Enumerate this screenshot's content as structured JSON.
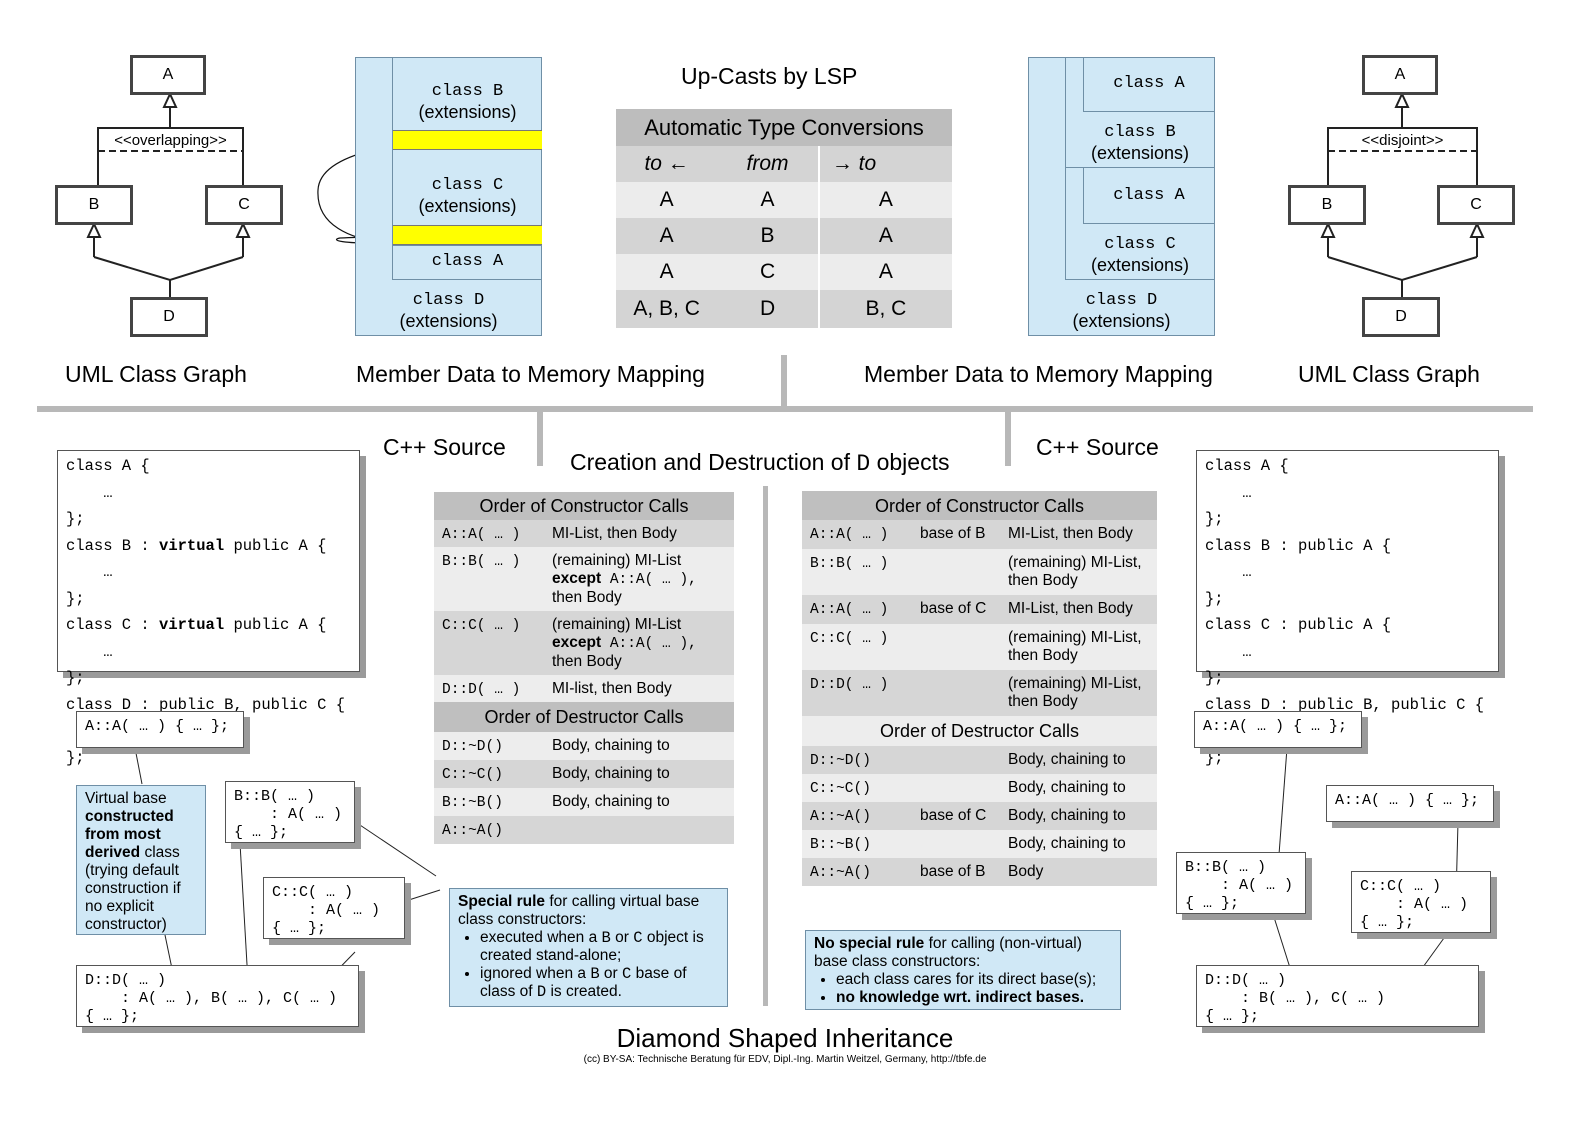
{
  "uml_left": {
    "a": "A",
    "b": "B",
    "c": "C",
    "d": "D",
    "constraint": "<<overlapping>>",
    "caption": "UML Class Graph"
  },
  "uml_right": {
    "a": "A",
    "b": "B",
    "c": "C",
    "d": "D",
    "constraint": "<<disjoint>>",
    "caption": "UML Class Graph"
  },
  "mem_left": {
    "class_b": "class B",
    "class_b_ext": "(extensions)",
    "class_c": "class C",
    "class_c_ext": "(extensions)",
    "class_a": "class A",
    "class_d": "class D",
    "class_d_ext": "(extensions)",
    "caption": "Member Data to Memory Mapping"
  },
  "mem_right": {
    "class_a1": "class A",
    "class_b": "class B",
    "class_b_ext": "(extensions)",
    "class_a2": "class A",
    "class_c": "class C",
    "class_c_ext": "(extensions)",
    "class_d": "class D",
    "class_d_ext": "(extensions)",
    "caption": "Member Data to Memory Mapping"
  },
  "upcasts": {
    "title": "Up-Casts by LSP",
    "table_title": "Automatic Type Conversions",
    "col_to_left": "to ←",
    "col_from": "from",
    "col_to_right": "→ to",
    "rows": [
      {
        "left": "A",
        "from": "A",
        "right": "A"
      },
      {
        "left": "A",
        "from": "B",
        "right": "A"
      },
      {
        "left": "A",
        "from": "C",
        "right": "A"
      },
      {
        "left": "A, B, C",
        "from": "D",
        "right": "B, C"
      }
    ]
  },
  "cpp_left": {
    "title": "C++ Source",
    "l1": "class A {",
    "l2": "    …",
    "l3": "};",
    "l4a": "class B : ",
    "l4b": "virtual",
    "l4c": " public A {",
    "l5": "    …",
    "l6": "};",
    "l7a": "class C : ",
    "l7b": "virtual",
    "l7c": " public A {",
    "l8": "    …",
    "l9": "};",
    "l10": "class D : public B, public C {",
    "l11": "    …",
    "l12": "};"
  },
  "cpp_right": {
    "title": "C++ Source",
    "lines": [
      "class A {",
      "    …",
      "};",
      "class B : public A {",
      "    …",
      "};",
      "class C : public A {",
      "    …",
      "};",
      "class D : public B, public C {",
      "    …",
      "};"
    ]
  },
  "center": {
    "title_pre": "Creation and Destruction of ",
    "title_d": "D",
    "title_post": " objects"
  },
  "left_ctor": {
    "header": "Order of Constructor Calls",
    "r1_fn": "A::A( … )",
    "r1_desc": "MI-List, then Body",
    "r2_fn": "B::B( … )",
    "r2_d1": "(remaining) MI-List",
    "r2_d2a": "except",
    "r2_d2b": " A::A( … ),",
    "r2_d3": "then Body",
    "r3_fn": "C::C( … )",
    "r3_d1": "(remaining) MI-List",
    "r3_d2a": "except",
    "r3_d2b": " A::A( … ),",
    "r3_d3": "then Body",
    "r4_fn": "D::D( … )",
    "r4_desc": "MI-list, then Body"
  },
  "left_dtor": {
    "header": "Order of Destructor Calls",
    "rows": [
      {
        "fn": "D::~D()",
        "desc": "Body, chaining to"
      },
      {
        "fn": "C::~C()",
        "desc": "Body, chaining to"
      },
      {
        "fn": "B::~B()",
        "desc": "Body, chaining to"
      },
      {
        "fn": "A::~A()",
        "desc": ""
      }
    ]
  },
  "right_ctor": {
    "header": "Order of Constructor Calls",
    "rows": [
      {
        "fn": "A::A( … )",
        "base": "base of B",
        "d1": "MI-List, then Body",
        "d2": ""
      },
      {
        "fn": "B::B( … )",
        "base": "",
        "d1": "(remaining) MI-List,",
        "d2": "then Body"
      },
      {
        "fn": "A::A( … )",
        "base": "base of C",
        "d1": "MI-List, then Body",
        "d2": ""
      },
      {
        "fn": "C::C( … )",
        "base": "",
        "d1": "(remaining) MI-List,",
        "d2": "then Body"
      },
      {
        "fn": "D::D( … )",
        "base": "",
        "d1": "(remaining) MI-List,",
        "d2": "then Body"
      }
    ]
  },
  "right_dtor": {
    "header": "Order of Destructor Calls",
    "rows": [
      {
        "fn": "D::~D()",
        "base": "",
        "desc": "Body, chaining to"
      },
      {
        "fn": "C::~C()",
        "base": "",
        "desc": "Body, chaining to"
      },
      {
        "fn": "A::~A()",
        "base": "base of C",
        "desc": "Body, chaining to"
      },
      {
        "fn": "B::~B()",
        "base": "",
        "desc": "Body, chaining to"
      },
      {
        "fn": "A::~A()",
        "base": "base of B",
        "desc": "Body"
      }
    ]
  },
  "left_snippets": {
    "a": "A::A( … ) { … };",
    "b": "B::B( … )\n    : A( … )\n{ … };",
    "c": "C::C( … )\n    : A( … )\n{ … };",
    "d": "D::D( … )\n    : A( … ), B( … ), C( … )\n{ … };"
  },
  "right_snippets": {
    "a1": "A::A( … ) { … };",
    "a2": "A::A( … ) { … };",
    "b": "B::B( … )\n    : A( … )\n{ … };",
    "c": "C::C( … )\n    : A( … )\n{ … };",
    "d": "D::D( … )\n    : B( … ), C( … )\n{ … };"
  },
  "virtual_note": {
    "t1": "Virtual base ",
    "t2": "constructed from most derived",
    "t3": " class (trying default construction if no explicit constructor)"
  },
  "special_rule": {
    "bold": "Special rule",
    "rest": " for calling virtual base class constructors:",
    "b1_pre": "executed when a ",
    "b1_b": "B",
    "b1_or": " or ",
    "b1_c": "C",
    "b1_post": " object is created stand-alone;",
    "b2_pre": "ignored when a ",
    "b2_b": "B",
    "b2_or": " or ",
    "b2_c": "C",
    "b2_mid": " base of class of ",
    "b2_d": "D",
    "b2_post": " is created."
  },
  "no_special_rule": {
    "bold": "No special rule",
    "rest": " for calling (non-virtual) base class constructors:",
    "b1": "each class cares for its direct base(s);",
    "b2": "no knowledge wrt. indirect bases."
  },
  "footer": {
    "title": "Diamond Shaped Inheritance",
    "credit": "(cc) BY-SA: Technische Beratung für EDV, Dipl.-Ing. Martin Weitzel, Germany, http://tbfe.de"
  }
}
